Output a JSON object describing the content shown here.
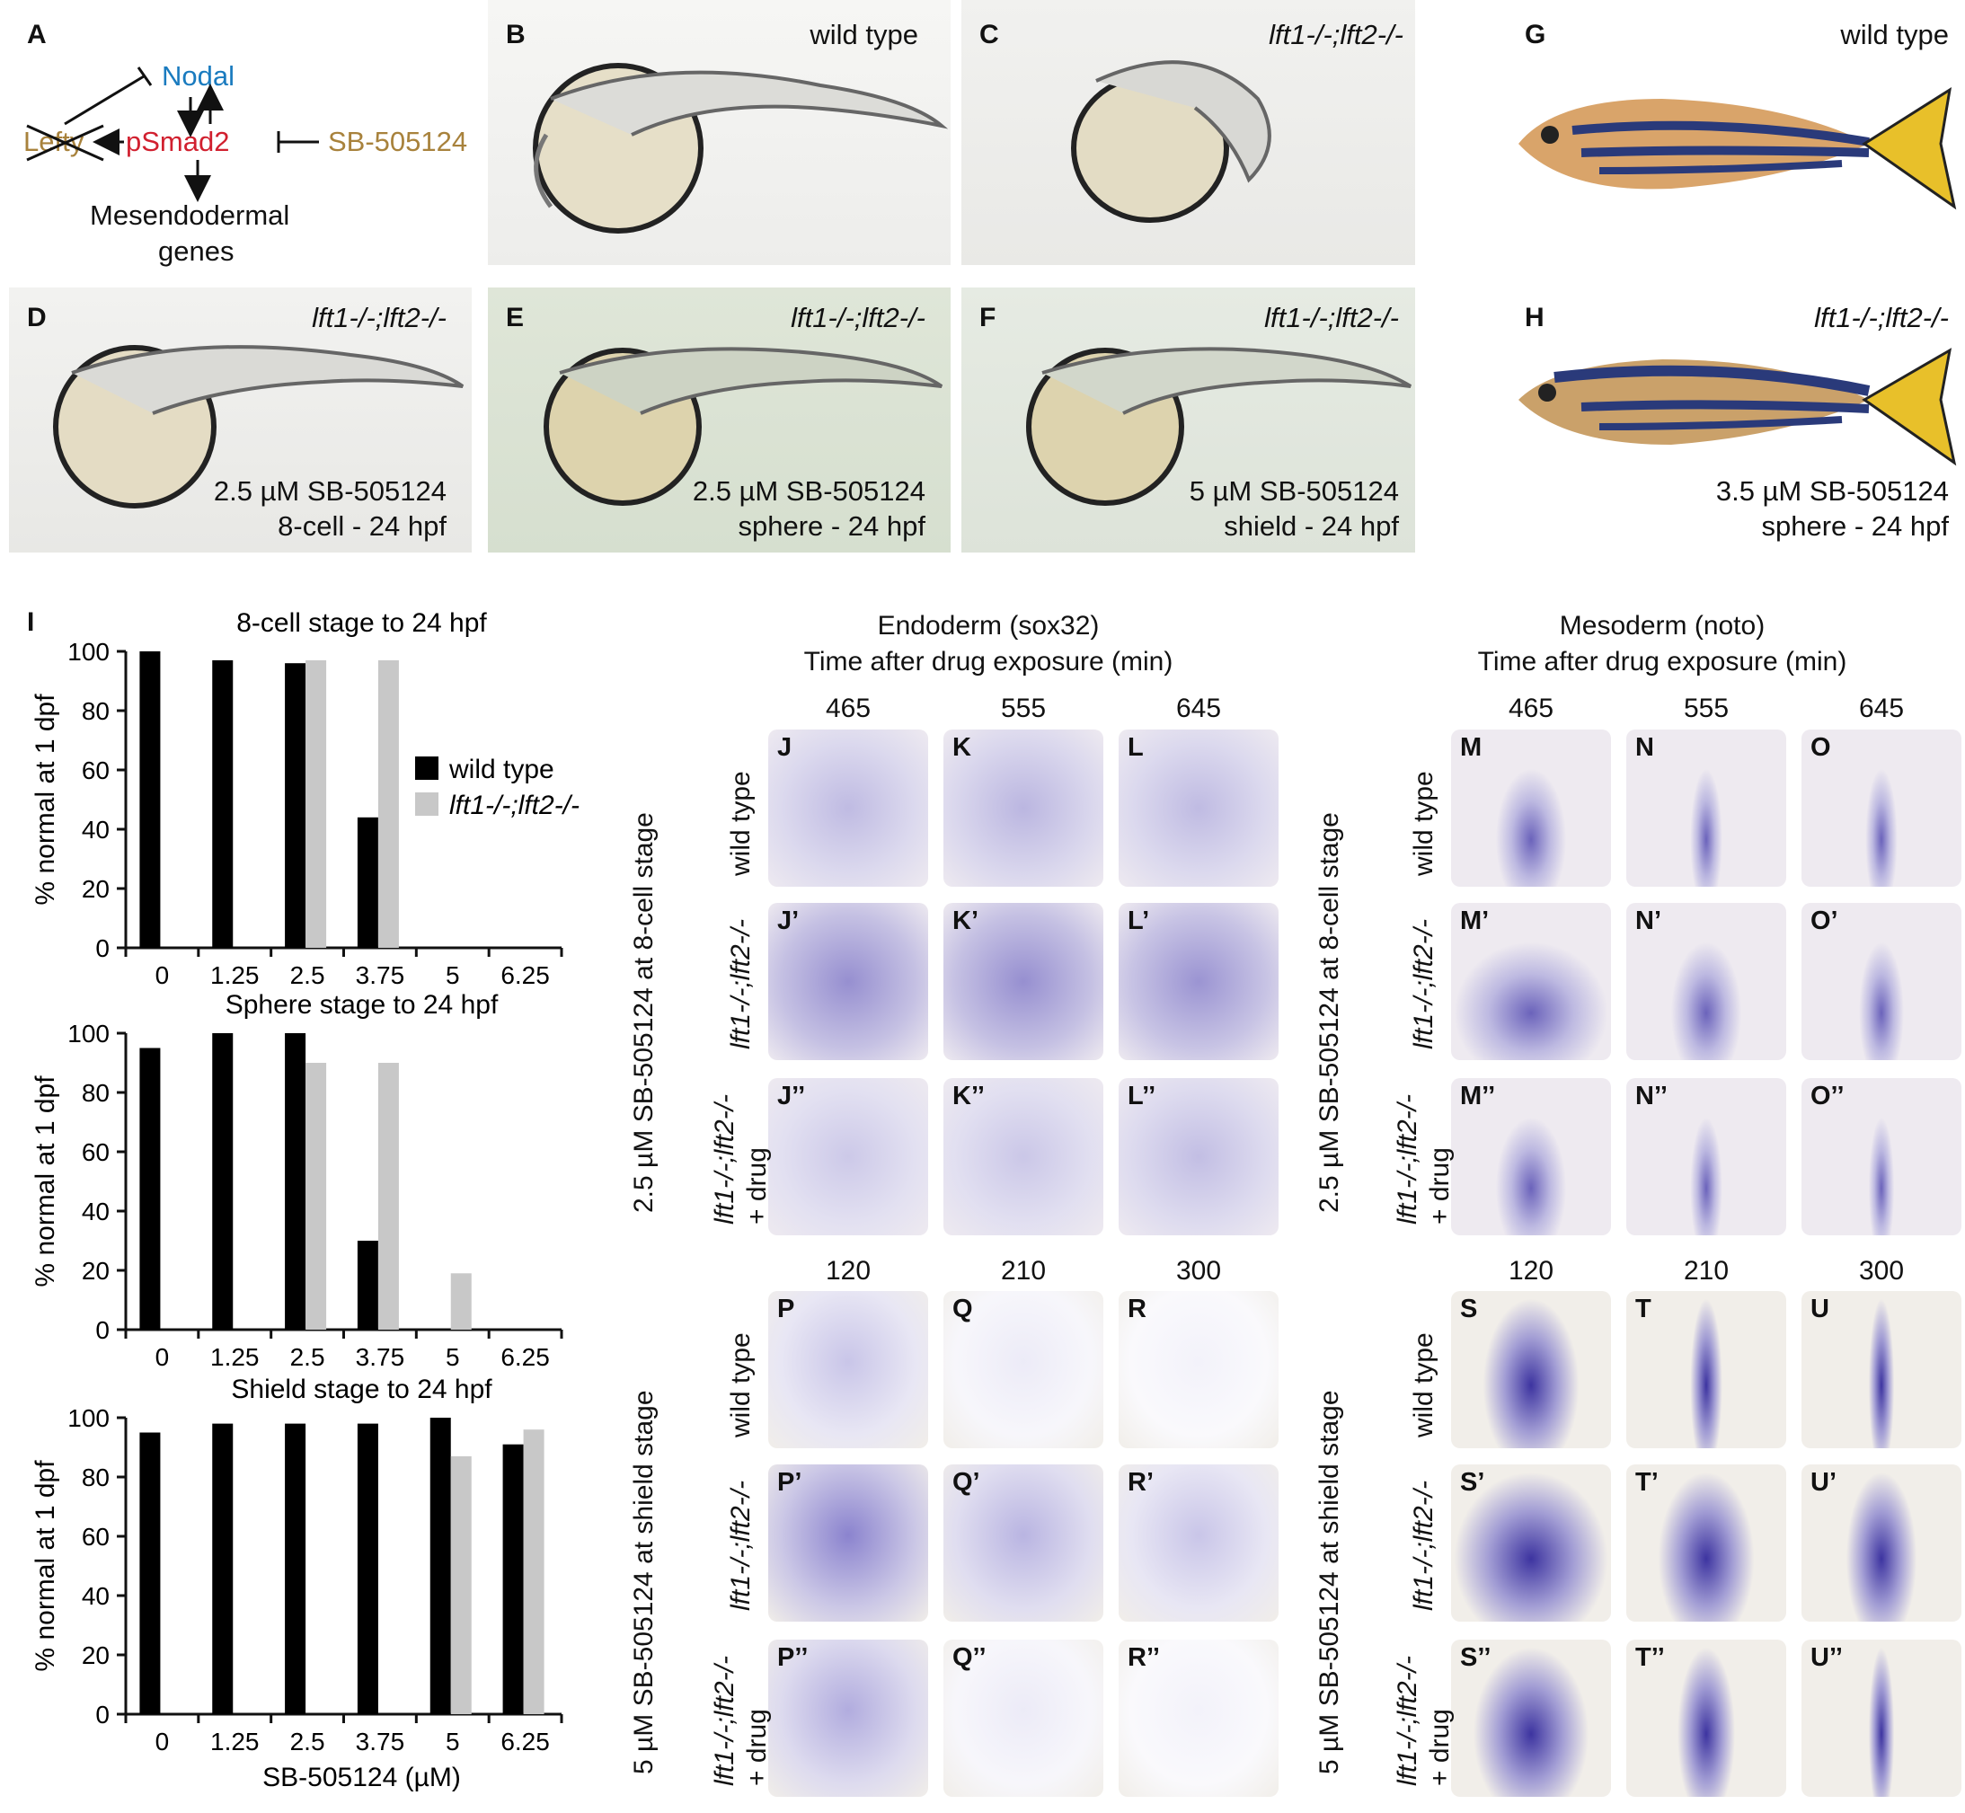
{
  "panelA": {
    "letter": "A",
    "nodal": "Nodal",
    "psmad2": "pSmad2",
    "lefty": "Lefty",
    "inhibitor": "SB-505124",
    "genes_line1": "Mesendodermal",
    "genes_line2": "genes",
    "colors": {
      "nodal": "#1a7bbf",
      "psmad2": "#d1202f",
      "inhibitor": "#a8823c",
      "lefty": "#a8823c"
    }
  },
  "embryos": {
    "B": {
      "letter": "B",
      "label": "wild type"
    },
    "C": {
      "letter": "C",
      "label": "lft1-/-;lft2-/-"
    },
    "D": {
      "letter": "D",
      "label": "lft1-/-;lft2-/-",
      "line1": "2.5 µM SB-505124",
      "line2": "8-cell - 24 hpf"
    },
    "E": {
      "letter": "E",
      "label": "lft1-/-;lft2-/-",
      "line1": "2.5 µM SB-505124",
      "line2": "sphere - 24 hpf"
    },
    "F": {
      "letter": "F",
      "label": "lft1-/-;lft2-/-",
      "line1": "5 µM SB-505124",
      "line2": "shield - 24 hpf"
    },
    "G": {
      "letter": "G",
      "label": "wild type"
    },
    "H": {
      "letter": "H",
      "label": "lft1-/-;lft2-/-",
      "line1": "3.5 µM SB-505124",
      "line2": "sphere - 24 hpf"
    }
  },
  "panelI": {
    "letter": "I",
    "ylabel": "% normal at 1 dpf",
    "xlabel": "SB-505124 (µM)",
    "legend": [
      "wild type",
      "lft1-/-;lft2-/-"
    ]
  },
  "chart_data": [
    {
      "type": "bar",
      "title": "8-cell stage to 24 hpf",
      "categories": [
        "0",
        "1.25",
        "2.5",
        "3.75",
        "5",
        "6.25"
      ],
      "series": [
        {
          "name": "wild type",
          "color": "#000000",
          "values": [
            100,
            97,
            96,
            44,
            0,
            0
          ]
        },
        {
          "name": "lft1-/-;lft2-/-",
          "color": "#c8c8c8",
          "values": [
            null,
            null,
            97,
            97,
            0,
            0
          ]
        }
      ],
      "ylim": [
        0,
        100
      ],
      "yticks": [
        0,
        20,
        40,
        60,
        80,
        100
      ],
      "ylabel": "% normal at 1 dpf",
      "legend_position": "right"
    },
    {
      "type": "bar",
      "title": "Sphere stage to 24 hpf",
      "categories": [
        "0",
        "1.25",
        "2.5",
        "3.75",
        "5",
        "6.25"
      ],
      "series": [
        {
          "name": "wild type",
          "color": "#000000",
          "values": [
            95,
            100,
            100,
            30,
            0,
            0
          ]
        },
        {
          "name": "lft1-/-;lft2-/-",
          "color": "#c8c8c8",
          "values": [
            null,
            null,
            90,
            90,
            19,
            0
          ]
        }
      ],
      "ylim": [
        0,
        100
      ],
      "yticks": [
        0,
        20,
        40,
        60,
        80,
        100
      ],
      "ylabel": "% normal at 1 dpf"
    },
    {
      "type": "bar",
      "title": "Shield stage to 24 hpf",
      "categories": [
        "0",
        "1.25",
        "2.5",
        "3.75",
        "5",
        "6.25"
      ],
      "series": [
        {
          "name": "wild type",
          "color": "#000000",
          "values": [
            95,
            98,
            98,
            98,
            100,
            91
          ]
        },
        {
          "name": "lft1-/-;lft2-/-",
          "color": "#c8c8c8",
          "values": [
            null,
            null,
            null,
            null,
            87,
            96
          ]
        }
      ],
      "ylim": [
        0,
        100
      ],
      "yticks": [
        0,
        20,
        40,
        60,
        80,
        100
      ],
      "ylabel": "% normal at 1 dpf",
      "xlabel": "SB-505124 (µM)"
    }
  ],
  "ish": {
    "endoderm_title1": "Endoderm (sox32)",
    "mesoderm_title1": "Mesoderm (noto)",
    "time_title": "Time after drug exposure (min)",
    "times_8cell": [
      "465",
      "555",
      "645"
    ],
    "times_shield": [
      "120",
      "210",
      "300"
    ],
    "row_wt": "wild type",
    "row_mut": "lft1-/-;lft2-/-",
    "row_drug1": "lft1-/-;lft2-/-",
    "row_drug2": "+ drug",
    "group_8cell": "2.5 µM SB-505124 at 8-cell stage",
    "group_shield": "5 µM SB-505124 at shield stage",
    "letters": {
      "endo_8cell": [
        [
          "J",
          "K",
          "L"
        ],
        [
          "J’",
          "K’",
          "L’"
        ],
        [
          "J’’",
          "K’’",
          "L’’"
        ]
      ],
      "meso_8cell": [
        [
          "M",
          "N",
          "O"
        ],
        [
          "M’",
          "N’",
          "O’"
        ],
        [
          "M’’",
          "N’’",
          "O’’"
        ]
      ],
      "endo_shield": [
        [
          "P",
          "Q",
          "R"
        ],
        [
          "P’",
          "Q’",
          "R’"
        ],
        [
          "P’’",
          "Q’’",
          "R’’"
        ]
      ],
      "meso_shield": [
        [
          "S",
          "T",
          "U"
        ],
        [
          "S’",
          "T’",
          "U’"
        ],
        [
          "S’’",
          "T’’",
          "U’’"
        ]
      ]
    }
  }
}
